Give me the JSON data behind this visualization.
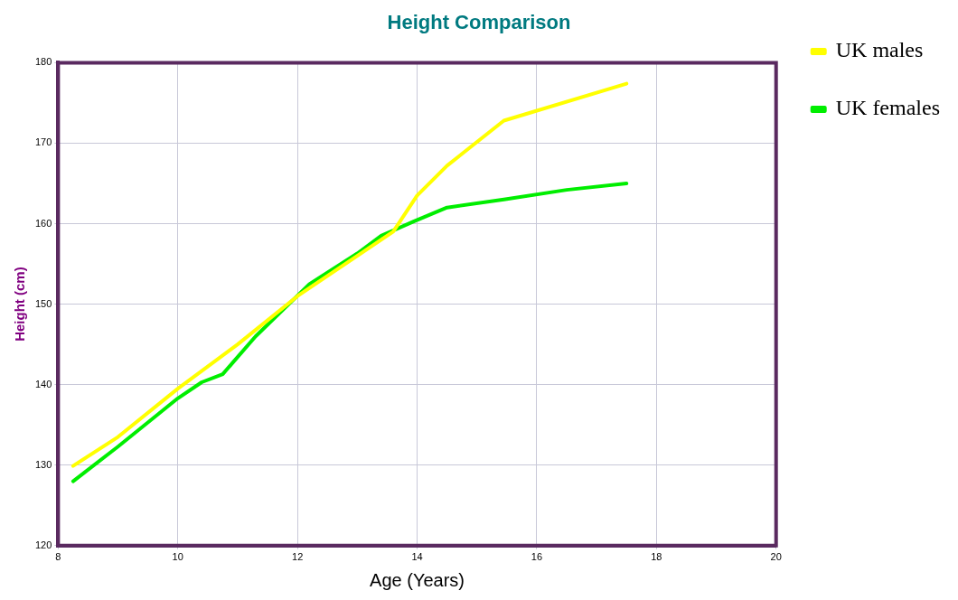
{
  "chart_data": {
    "type": "line",
    "title": "Height Comparison",
    "xlabel": "Age (Years)",
    "ylabel": "Height (cm)",
    "xlim": [
      8,
      20
    ],
    "xticks": [
      8,
      10,
      12,
      14,
      16,
      18,
      20
    ],
    "ylim": [
      120,
      180
    ],
    "yticks": [
      120,
      130,
      140,
      150,
      160,
      170,
      180
    ],
    "grid": true,
    "legend": "right",
    "marker": "none",
    "line_style": "solid",
    "series": [
      {
        "name": "UK males",
        "color": "#ffff00",
        "x": [
          8.25,
          9,
          10,
          11,
          12,
          13,
          13.6,
          14,
          14.5,
          15.45,
          17.5
        ],
        "values": [
          129.9,
          133.5,
          139.5,
          145,
          151,
          156,
          159,
          163.5,
          167.2,
          172.8,
          177.4
        ]
      },
      {
        "name": "UK females",
        "color": "#00ee00",
        "x": [
          8.25,
          9,
          10,
          10.4,
          10.75,
          11.3,
          12.2,
          13,
          13.4,
          13.95,
          14.5,
          15.45,
          16.5,
          17.5
        ],
        "values": [
          128,
          132.3,
          138.3,
          140.3,
          141.3,
          146,
          152.5,
          156.3,
          158.5,
          160.3,
          162,
          163,
          164.2,
          165
        ]
      }
    ]
  }
}
